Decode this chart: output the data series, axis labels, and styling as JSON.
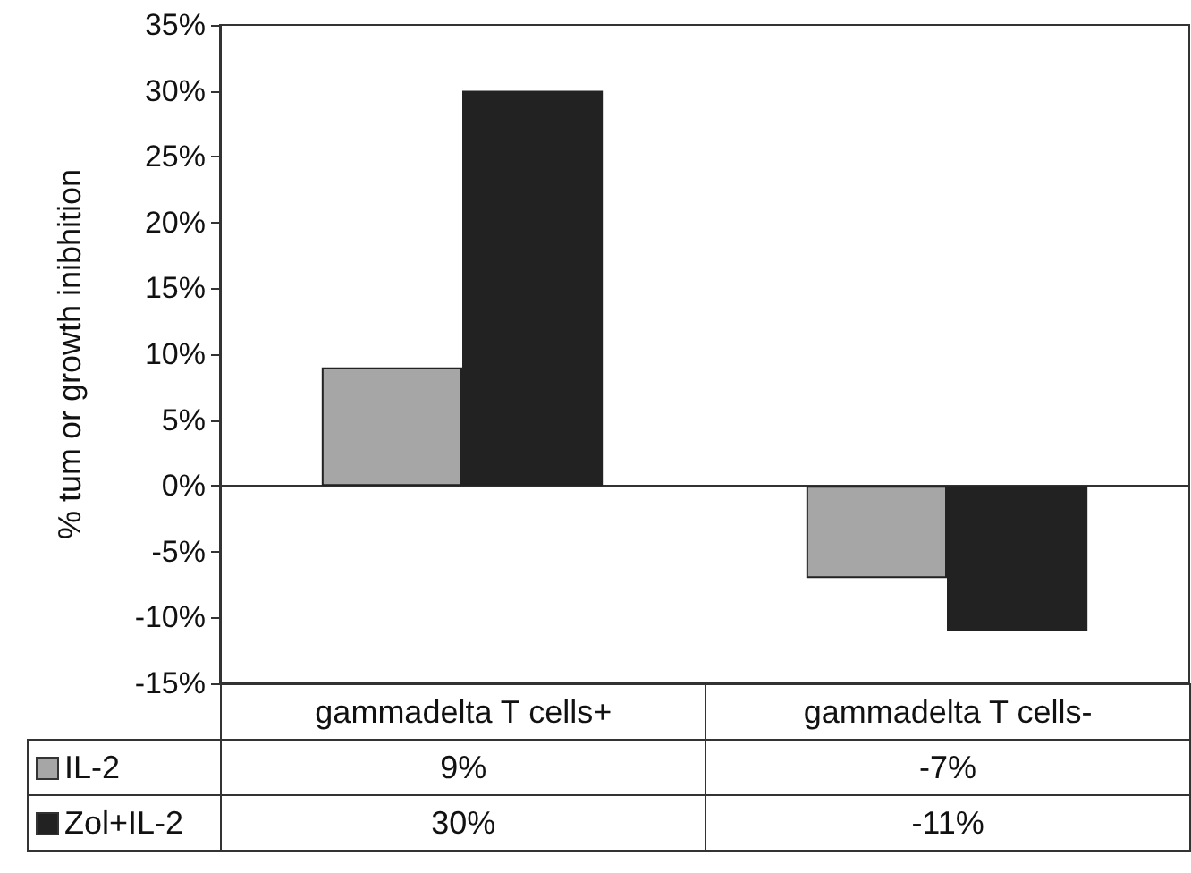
{
  "chart_data": {
    "type": "bar",
    "ylabel": "% tum or growth inibhition",
    "categories": [
      "gammadelta T cells+",
      "gammadelta T cells-"
    ],
    "series": [
      {
        "name": "IL-2",
        "color": "#a6a6a6",
        "values": [
          9,
          -7
        ],
        "value_labels": [
          "9%",
          "-7%"
        ]
      },
      {
        "name": "Zol+IL-2",
        "color": "#222222",
        "values": [
          30,
          -11
        ],
        "value_labels": [
          "30%",
          "-11%"
        ]
      }
    ],
    "ylim": [
      -15,
      35
    ],
    "yticks": [
      {
        "value": -15,
        "label": "-15%"
      },
      {
        "value": -10,
        "label": "-10%"
      },
      {
        "value": -5,
        "label": "-5%"
      },
      {
        "value": 0,
        "label": "0%"
      },
      {
        "value": 5,
        "label": "5%"
      },
      {
        "value": 10,
        "label": "10%"
      },
      {
        "value": 15,
        "label": "15%"
      },
      {
        "value": 20,
        "label": "20%"
      },
      {
        "value": 25,
        "label": "25%"
      },
      {
        "value": 30,
        "label": "30%"
      },
      {
        "value": 35,
        "label": "35%"
      }
    ],
    "legend": "bottom left"
  }
}
